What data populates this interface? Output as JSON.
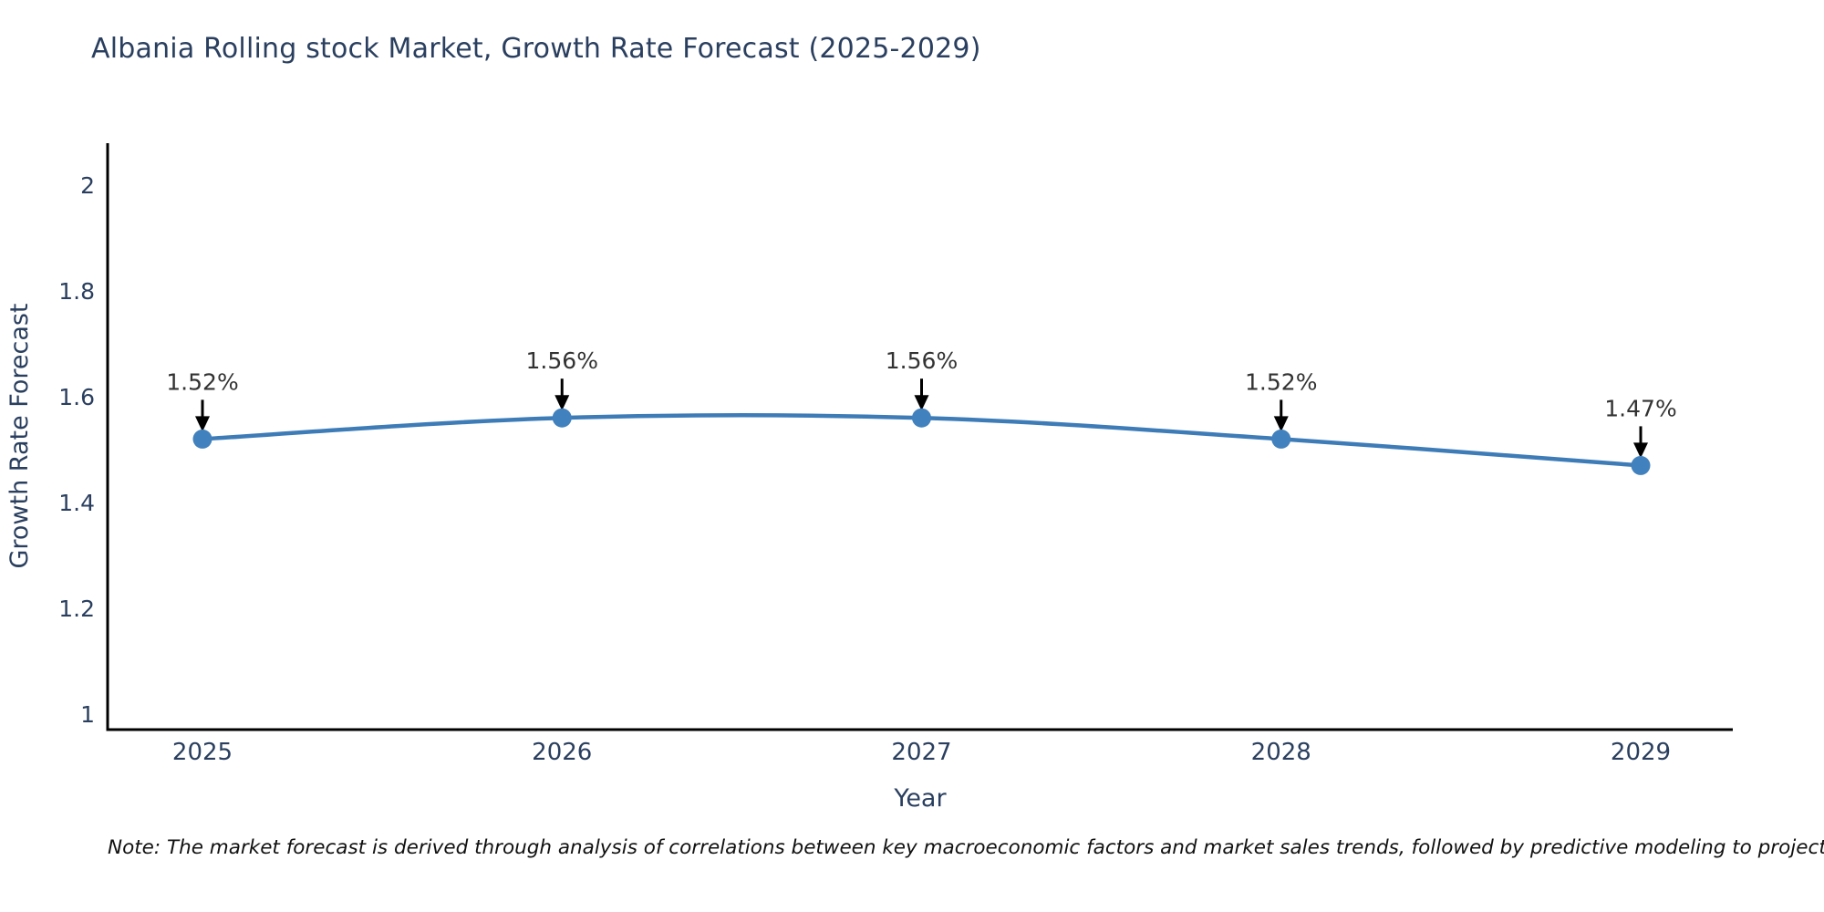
{
  "page": {
    "note": "Note: The market forecast is derived through analysis of correlations between key macroeconomic factors and market sales trends, followed by predictive modeling to project future sales"
  },
  "chart_data": {
    "type": "line",
    "title": "Albania Rolling stock Market, Growth Rate Forecast (2025-2029)",
    "xlabel": "Year",
    "ylabel": "Growth Rate Forecast",
    "categories": [
      "2025",
      "2026",
      "2027",
      "2028",
      "2029"
    ],
    "values": [
      1.52,
      1.56,
      1.56,
      1.52,
      1.47
    ],
    "point_labels": [
      "1.52%",
      "1.56%",
      "1.56%",
      "1.52%",
      "1.47%"
    ],
    "ylim": [
      1,
      2
    ],
    "yticks": [
      "1",
      "1.2",
      "1.4",
      "1.6",
      "1.8",
      "2"
    ],
    "ytick_values": [
      1,
      1.2,
      1.4,
      1.6,
      1.8,
      2
    ],
    "grid": false,
    "legend": "none",
    "line_shape": "spline",
    "colors": {
      "line": "#3e7cb7",
      "marker": "#4181bd",
      "axis": "#000000",
      "text": "#2a3f5f",
      "annotation": "#333333",
      "arrow": "#000000",
      "background": "#ffffff"
    }
  }
}
